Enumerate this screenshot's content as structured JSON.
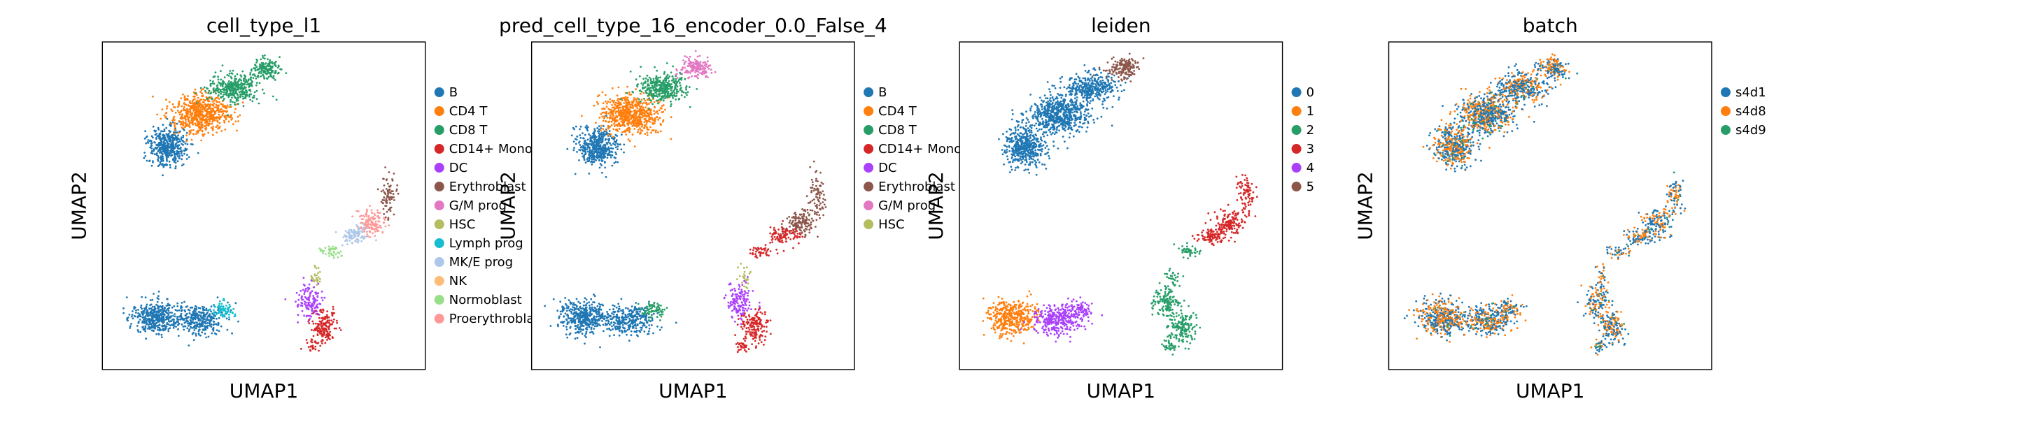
{
  "figure": {
    "background": "#ffffff"
  },
  "chart_data": [
    {
      "type": "scatter",
      "title": "cell_type_l1",
      "xlabel": "UMAP1",
      "ylabel": "UMAP2",
      "legend_position": "right",
      "grid": false,
      "legend": [
        {
          "label": "B",
          "color": "#1f77b4"
        },
        {
          "label": "CD4 T",
          "color": "#ff7f0e"
        },
        {
          "label": "CD8 T",
          "color": "#279e68"
        },
        {
          "label": "CD14+ Mono",
          "color": "#d62728"
        },
        {
          "label": "DC",
          "color": "#aa40fc"
        },
        {
          "label": "Erythroblast",
          "color": "#8c564b"
        },
        {
          "label": "G/M prog",
          "color": "#e377c2"
        },
        {
          "label": "HSC",
          "color": "#b5bd61"
        },
        {
          "label": "Lymph prog",
          "color": "#17becf"
        },
        {
          "label": "MK/E prog",
          "color": "#aec7e8"
        },
        {
          "label": "NK",
          "color": "#ffbb78"
        },
        {
          "label": "Normoblast",
          "color": "#98df8a"
        },
        {
          "label": "Proerythroblast",
          "color": "#ff9896"
        }
      ]
    },
    {
      "type": "scatter",
      "title": "pred_cell_type_16_encoder_0.0_False_4",
      "xlabel": "UMAP1",
      "ylabel": "UMAP2",
      "legend_position": "right",
      "grid": false,
      "legend": [
        {
          "label": "B",
          "color": "#1f77b4"
        },
        {
          "label": "CD4 T",
          "color": "#ff7f0e"
        },
        {
          "label": "CD8 T",
          "color": "#279e68"
        },
        {
          "label": "CD14+ Mono",
          "color": "#d62728"
        },
        {
          "label": "DC",
          "color": "#aa40fc"
        },
        {
          "label": "Erythroblast",
          "color": "#8c564b"
        },
        {
          "label": "G/M prog",
          "color": "#e377c2"
        },
        {
          "label": "HSC",
          "color": "#b5bd61"
        }
      ]
    },
    {
      "type": "scatter",
      "title": "leiden",
      "xlabel": "UMAP1",
      "ylabel": "UMAP2",
      "legend_position": "right",
      "grid": false,
      "legend": [
        {
          "label": "0",
          "color": "#1f77b4"
        },
        {
          "label": "1",
          "color": "#ff7f0e"
        },
        {
          "label": "2",
          "color": "#279e68"
        },
        {
          "label": "3",
          "color": "#d62728"
        },
        {
          "label": "4",
          "color": "#aa40fc"
        },
        {
          "label": "5",
          "color": "#8c564b"
        }
      ]
    },
    {
      "type": "scatter",
      "title": "batch",
      "xlabel": "UMAP1",
      "ylabel": "UMAP2",
      "legend_position": "right",
      "grid": false,
      "legend": [
        {
          "label": "s4d1",
          "color": "#1f77b4"
        },
        {
          "label": "s4d8",
          "color": "#ff7f0e"
        },
        {
          "label": "s4d9",
          "color": "#279e68"
        }
      ]
    }
  ]
}
